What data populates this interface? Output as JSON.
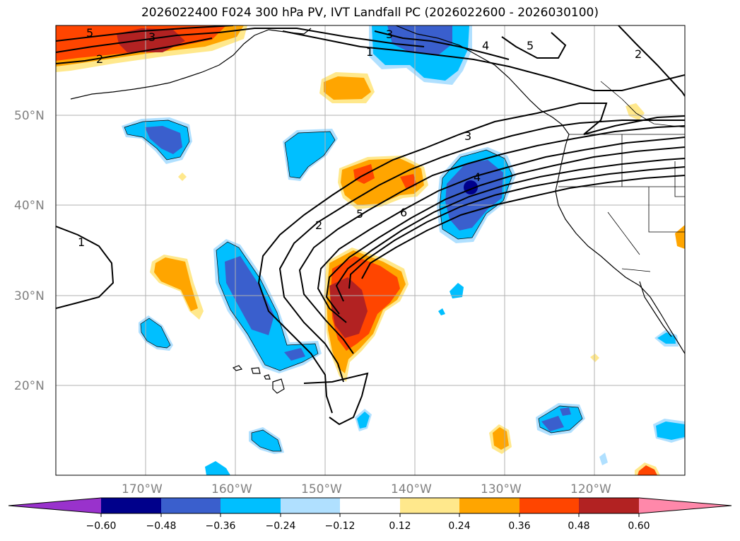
{
  "title": "2026022400 F024 300 hPa PV, IVT Landfall PC (2026022600 - 2026030100)",
  "map": {
    "lat_labels": [
      "50°N",
      "40°N",
      "30°N",
      "20°N"
    ],
    "lon_labels": [
      "170°W",
      "160°W",
      "150°W",
      "140°W",
      "130°W",
      "120°W"
    ],
    "contour_labels": [
      "5",
      "3",
      "2",
      "3",
      "1",
      "4",
      "5",
      "2",
      "1",
      "3",
      "2",
      "5",
      "6",
      "4"
    ]
  },
  "colorbar": {
    "ticks": [
      "−0.60",
      "−0.48",
      "−0.36",
      "−0.24",
      "−0.12",
      "0.12",
      "0.24",
      "0.36",
      "0.48",
      "0.60"
    ],
    "colors": [
      "#9932cc",
      "#00008b",
      "#3a5fcd",
      "#00bfff",
      "#b0e0ff",
      "#ffffff",
      "#ffe88c",
      "#ffa500",
      "#ff4500",
      "#b22222",
      "#ff88aa"
    ]
  },
  "colors": {
    "strong_negative": "#3a5fcd",
    "negative": "#00bfff",
    "weak_negative": "#b0e0ff",
    "weak_positive": "#ffe88c",
    "positive": "#ffa500",
    "strong_positive": "#ff4500",
    "very_strong_positive": "#b22222"
  }
}
